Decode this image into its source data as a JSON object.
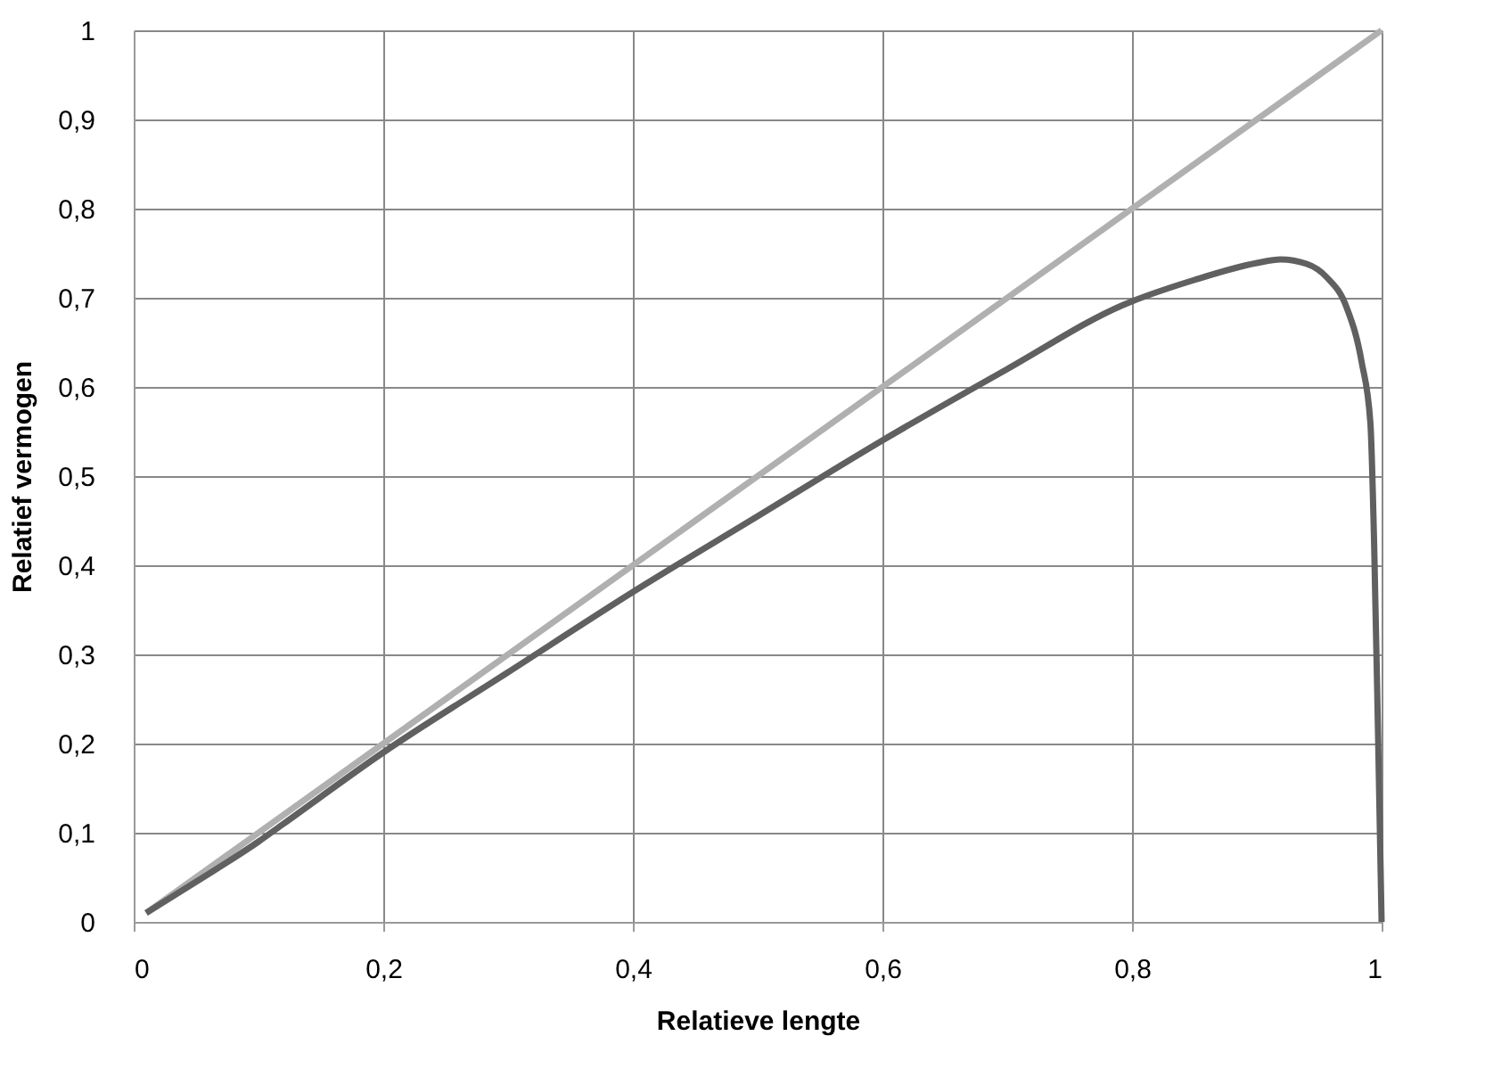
{
  "chart_data": {
    "type": "line",
    "xlabel": "Relatieve lengte",
    "ylabel": "Relatief vermogen",
    "xlim": [
      0,
      1
    ],
    "ylim": [
      0,
      1
    ],
    "xticks": [
      0,
      {
        "value": 0.2,
        "label": "0,2"
      },
      {
        "value": 0.4,
        "label": "0,4"
      },
      {
        "value": 0.6,
        "label": "0,6"
      },
      {
        "value": 0.8,
        "label": "0,8"
      },
      1
    ],
    "yticks": [
      0,
      {
        "value": 0.1,
        "label": "0,1"
      },
      {
        "value": 0.2,
        "label": "0,2"
      },
      {
        "value": 0.3,
        "label": "0,3"
      },
      {
        "value": 0.4,
        "label": "0,4"
      },
      {
        "value": 0.5,
        "label": "0,5"
      },
      {
        "value": 0.6,
        "label": "0,6"
      },
      {
        "value": 0.7,
        "label": "0,7"
      },
      {
        "value": 0.8,
        "label": "0,8"
      },
      {
        "value": 0.9,
        "label": "0,9"
      },
      1
    ],
    "grid": true,
    "marker": "none",
    "line_style": "solid",
    "series": [
      {
        "color": "#b0b0b0",
        "x": [
          0.01,
          1.0
        ],
        "values": [
          0.01,
          1.0
        ]
      },
      {
        "color": "#606060",
        "x": [
          0.01,
          0.05,
          0.1,
          0.12,
          0.2,
          0.3,
          0.4,
          0.5,
          0.6,
          0.7,
          0.793,
          0.85,
          0.9,
          0.919,
          0.94,
          0.956,
          0.972,
          0.984,
          0.991,
          0.994,
          0.997,
          1.0
        ],
        "values": [
          0.01,
          0.045,
          0.09,
          0.11,
          0.19,
          0.28,
          0.37,
          0.455,
          0.54,
          0.62,
          0.692,
          0.72,
          0.739,
          0.743,
          0.738,
          0.723,
          0.689,
          0.628,
          0.56,
          0.425,
          0.222,
          0.0
        ]
      }
    ]
  }
}
